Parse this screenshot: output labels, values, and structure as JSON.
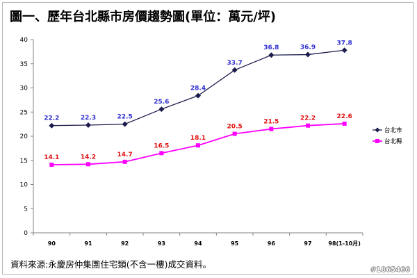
{
  "title": "圖一、歷年台北縣市房價趨勢圖(單位：萬元/坪)",
  "source": "資料來源:永慶房仲集團住宅類(不含一樓)成交資料。",
  "watermark": "#1865466",
  "colors": {
    "series_1": "#1c1c4e",
    "series_2": "#ff00ff",
    "label_1": "#2f2fd0",
    "label_2": "#e01010",
    "axis": "#808080"
  },
  "chart_data": {
    "type": "line",
    "title": "",
    "xlabel": "",
    "ylabel": "",
    "ylim": [
      0,
      40
    ],
    "yticks": [
      0,
      5,
      10,
      15,
      20,
      25,
      30,
      35,
      40
    ],
    "categories": [
      "90",
      "91",
      "92",
      "93",
      "94",
      "95",
      "96",
      "97",
      "98(1-10月)"
    ],
    "series": [
      {
        "name": "台北市",
        "marker": "diamond",
        "values": [
          22.2,
          22.3,
          22.5,
          25.6,
          28.4,
          33.7,
          36.8,
          36.9,
          37.8
        ]
      },
      {
        "name": "台北縣",
        "marker": "square",
        "values": [
          14.1,
          14.2,
          14.7,
          16.5,
          18.1,
          20.5,
          21.5,
          22.2,
          22.6
        ]
      }
    ],
    "grid": false,
    "legend": "right"
  }
}
